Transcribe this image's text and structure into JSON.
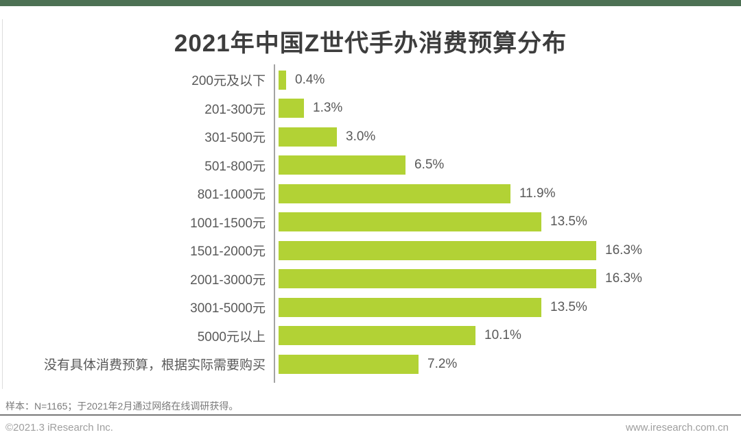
{
  "page": {
    "title": "2021年中国Z世代手办消费预算分布"
  },
  "footer": {
    "sample_note": "样本：N=1165；于2021年2月通过网络在线调研获得。",
    "copyright": "©2021.3 iResearch Inc.",
    "website": "www.iresearch.com.cn"
  },
  "colors": {
    "bar": "#b2d235",
    "top_band": "#4d7154",
    "title_text": "#3d3d3d",
    "label_text": "#595959",
    "axis_line": "#a3a3a3",
    "footer_note": "#7a7a7a",
    "footer_gray": "#9e9e9e",
    "divider": "#777777"
  },
  "chart_data": {
    "type": "bar",
    "orientation": "horizontal",
    "title": "2021年中国Z世代手办消费预算分布",
    "categories": [
      "200元及以下",
      "201-300元",
      "301-500元",
      "501-800元",
      "801-1000元",
      "1001-1500元",
      "1501-2000元",
      "2001-3000元",
      "3001-5000元",
      "5000元以上",
      "没有具体消费预算，根据实际需要购买"
    ],
    "values": [
      0.4,
      1.3,
      3.0,
      6.5,
      11.9,
      13.5,
      16.3,
      16.3,
      13.5,
      10.1,
      7.2
    ],
    "value_labels": [
      "0.4%",
      "1.3%",
      "3.0%",
      "6.5%",
      "11.9%",
      "13.5%",
      "16.3%",
      "16.3%",
      "13.5%",
      "10.1%",
      "7.2%"
    ],
    "unit": "%",
    "xlim": [
      0,
      17
    ],
    "grid": false,
    "legend": "none",
    "bar_color": "#b2d235",
    "value_label_position": "outside-right"
  }
}
